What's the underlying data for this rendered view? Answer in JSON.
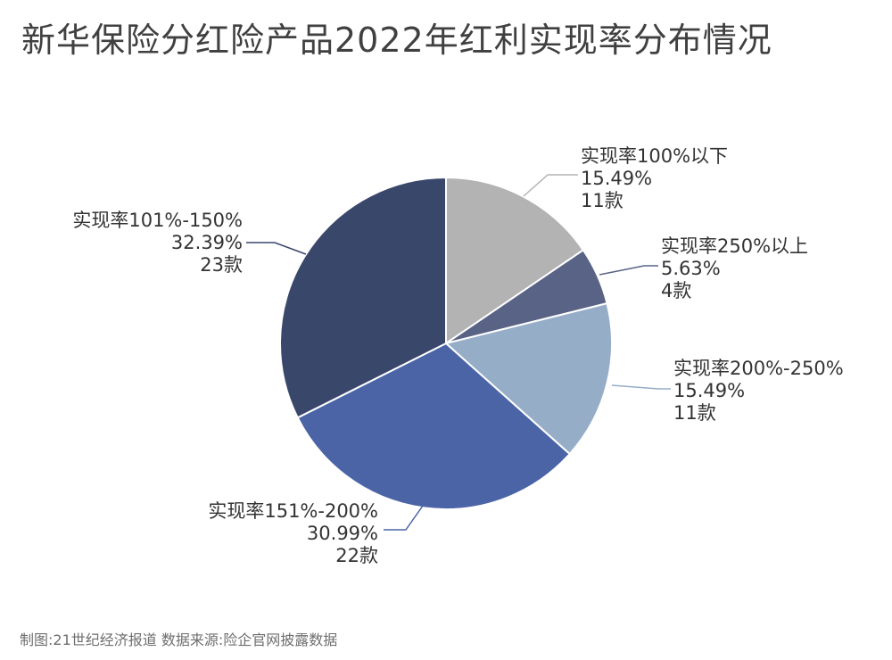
{
  "title": "新华保险分红险产品2022年红利实现率分布情况",
  "footer": "制图:21世纪经济报道 数据来源:险企官网披露数据",
  "chart_data": {
    "type": "pie",
    "slices": [
      {
        "label": "实现率100%以下",
        "percent_text": "15.49%",
        "count_text": "11款",
        "value": 15.49,
        "count": 11,
        "color": "#b3b3b3"
      },
      {
        "label": "实现率250%以上",
        "percent_text": "5.63%",
        "count_text": "4款",
        "value": 5.63,
        "count": 4,
        "color": "#596386"
      },
      {
        "label": "实现率200%-250%",
        "percent_text": "15.49%",
        "count_text": "11款",
        "value": 15.49,
        "count": 11,
        "color": "#95adc7"
      },
      {
        "label": "实现率151%-200%",
        "percent_text": "30.99%",
        "count_text": "22款",
        "value": 30.99,
        "count": 22,
        "color": "#4a64a6"
      },
      {
        "label": "实现率101%-150%",
        "percent_text": "32.39%",
        "count_text": "23款",
        "value": 32.39,
        "count": 23,
        "color": "#39476b"
      }
    ]
  }
}
